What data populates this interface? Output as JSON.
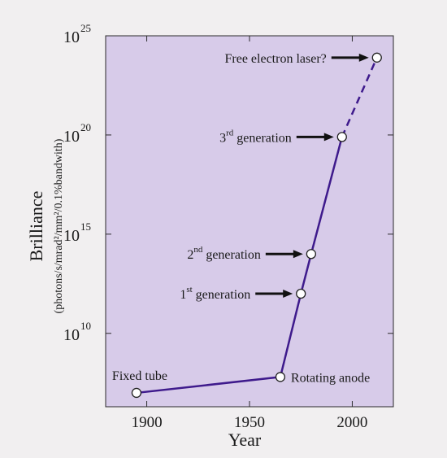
{
  "chart_data": {
    "type": "line",
    "title": "",
    "xlabel": "Year",
    "ylabel": "Brilliance",
    "ylabel_units": "(photons/s/mrad²/mm²/0.1%bandwith)",
    "x_ticks": [
      1900,
      1950,
      2000
    ],
    "x_tick_labels": [
      "1900",
      "1950",
      "2000"
    ],
    "xlim": [
      1880,
      2020
    ],
    "y_scale": "log",
    "ylim_exponent": [
      6.3,
      25
    ],
    "y_ticks": [
      {
        "base": "10",
        "exp": "10",
        "value_exp": 10
      },
      {
        "base": "10",
        "exp": "15",
        "value_exp": 15
      },
      {
        "base": "10",
        "exp": "20",
        "value_exp": 20
      },
      {
        "base": "10",
        "exp": "25",
        "value_exp": 25
      }
    ],
    "grid": false,
    "colors": {
      "plot_background": "#d7cbe9",
      "line": "#3e1a8c",
      "marker_fill": "#ffffff",
      "arrow": "#111111"
    },
    "points": [
      {
        "x": 1895,
        "y_exp": 7.0,
        "label": "Fixed tube",
        "label_position": "above"
      },
      {
        "x": 1965,
        "y_exp": 7.8,
        "label": "Rotating anode",
        "label_position": "right"
      },
      {
        "x": 1975,
        "y_exp": 12.0,
        "label_pre": "1",
        "label_sup": "st",
        "label_post": " generation",
        "label_position": "left-arrow"
      },
      {
        "x": 1980,
        "y_exp": 14.0,
        "label_pre": "2",
        "label_sup": "nd",
        "label_post": " generation",
        "label_position": "left-arrow"
      },
      {
        "x": 1995,
        "y_exp": 19.9,
        "label_pre": "3",
        "label_sup": "rd",
        "label_post": " generation",
        "label_position": "left-arrow"
      },
      {
        "x": 2012,
        "y_exp": 23.9,
        "label": "Free electron laser?",
        "label_position": "left-arrow"
      }
    ],
    "segments": [
      {
        "from": 0,
        "to": 1,
        "style": "solid"
      },
      {
        "from": 1,
        "to": 2,
        "style": "solid"
      },
      {
        "from": 2,
        "to": 3,
        "style": "solid"
      },
      {
        "from": 3,
        "to": 4,
        "style": "solid"
      },
      {
        "from": 4,
        "to": 5,
        "style": "dashed"
      }
    ]
  }
}
